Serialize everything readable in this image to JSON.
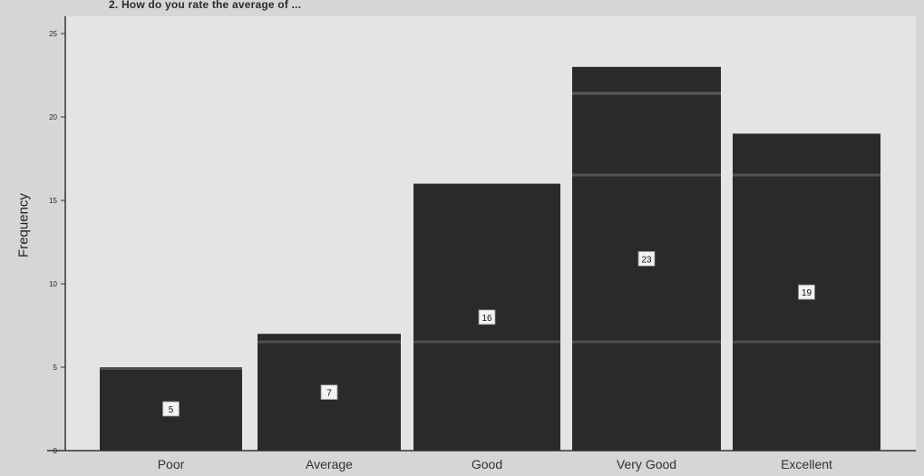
{
  "chart_data": {
    "type": "bar",
    "title": "2. How do you rate the average of ...",
    "xlabel": "",
    "ylabel": "Frequency",
    "categories": [
      "Poor",
      "Average",
      "Good",
      "Very Good",
      "Excellent"
    ],
    "values": [
      5,
      7,
      16,
      23,
      19
    ],
    "data_labels": [
      "5",
      "7",
      "16",
      "23",
      "19"
    ],
    "ylim": [
      0,
      25
    ],
    "yticks": [
      0,
      5,
      10,
      15,
      20,
      25
    ],
    "grid": false,
    "bar_color": "#2a2a2a",
    "background_color": "#e4e4e4"
  }
}
